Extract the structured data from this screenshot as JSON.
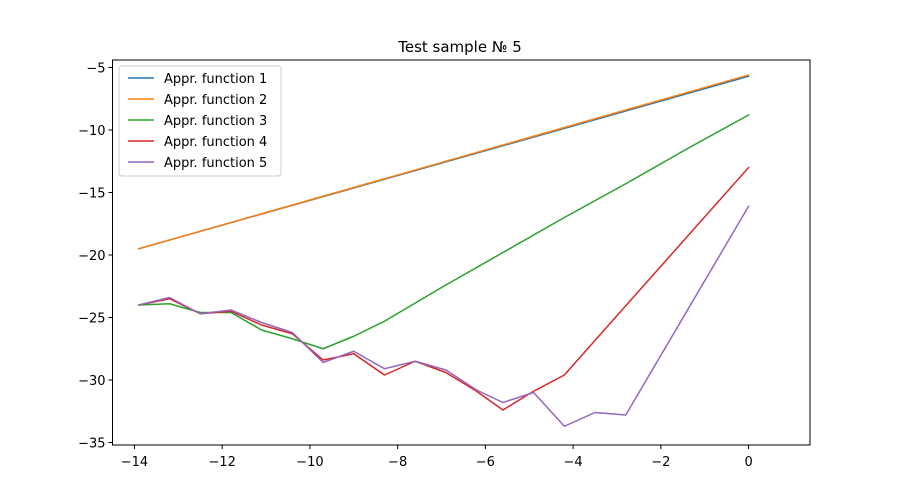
{
  "chart_data": {
    "type": "line",
    "title": "Test sample № 5",
    "xlabel": "",
    "ylabel": "",
    "xlim": [
      -14.5,
      1.4
    ],
    "ylim": [
      -35.2,
      -4.4
    ],
    "xticks": [
      -14,
      -12,
      -10,
      -8,
      -6,
      -4,
      -2,
      0
    ],
    "yticks": [
      -35,
      -30,
      -25,
      -20,
      -15,
      -10,
      -5
    ],
    "grid": false,
    "legend_position": "top-left",
    "series": [
      {
        "name": "Appr. function 1",
        "color": "#1f77b4",
        "points": [
          [
            -13.9,
            -19.5
          ],
          [
            0.0,
            -5.7
          ]
        ]
      },
      {
        "name": "Appr. function 2",
        "color": "#ff7f0e",
        "points": [
          [
            -13.9,
            -19.5
          ],
          [
            0.0,
            -5.6
          ]
        ]
      },
      {
        "name": "Appr. function 3",
        "color": "#2ca02c",
        "points": [
          [
            -13.9,
            -24.0
          ],
          [
            -13.2,
            -23.9
          ],
          [
            -12.5,
            -24.6
          ],
          [
            -11.8,
            -24.6
          ],
          [
            -11.1,
            -26.0
          ],
          [
            -10.4,
            -26.7
          ],
          [
            -9.7,
            -27.5
          ],
          [
            -9.0,
            -26.5
          ],
          [
            -8.3,
            -25.3
          ],
          [
            -7.0,
            -22.6
          ],
          [
            -5.6,
            -19.8
          ],
          [
            -4.2,
            -17.0
          ],
          [
            -2.8,
            -14.3
          ],
          [
            -1.4,
            -11.5
          ],
          [
            0.0,
            -8.8
          ]
        ]
      },
      {
        "name": "Appr. function 4",
        "color": "#d62728",
        "points": [
          [
            -13.9,
            -24.0
          ],
          [
            -13.2,
            -23.5
          ],
          [
            -12.5,
            -24.7
          ],
          [
            -11.8,
            -24.5
          ],
          [
            -11.1,
            -25.6
          ],
          [
            -10.4,
            -26.3
          ],
          [
            -9.7,
            -28.4
          ],
          [
            -9.0,
            -27.9
          ],
          [
            -8.3,
            -29.6
          ],
          [
            -7.6,
            -28.5
          ],
          [
            -6.9,
            -29.4
          ],
          [
            -6.2,
            -30.9
          ],
          [
            -5.6,
            -32.4
          ],
          [
            -4.9,
            -30.9
          ],
          [
            -4.2,
            -29.6
          ],
          [
            0.0,
            -13.0
          ]
        ]
      },
      {
        "name": "Appr. function 5",
        "color": "#9467bd",
        "points": [
          [
            -13.9,
            -24.0
          ],
          [
            -13.2,
            -23.4
          ],
          [
            -12.5,
            -24.7
          ],
          [
            -11.8,
            -24.4
          ],
          [
            -11.1,
            -25.4
          ],
          [
            -10.4,
            -26.2
          ],
          [
            -9.7,
            -28.6
          ],
          [
            -9.0,
            -27.7
          ],
          [
            -8.3,
            -29.1
          ],
          [
            -7.6,
            -28.5
          ],
          [
            -6.9,
            -29.2
          ],
          [
            -6.2,
            -30.8
          ],
          [
            -5.6,
            -31.8
          ],
          [
            -4.9,
            -31.0
          ],
          [
            -4.2,
            -33.7
          ],
          [
            -3.5,
            -32.6
          ],
          [
            -2.8,
            -32.8
          ],
          [
            0.0,
            -16.1
          ]
        ]
      }
    ]
  }
}
